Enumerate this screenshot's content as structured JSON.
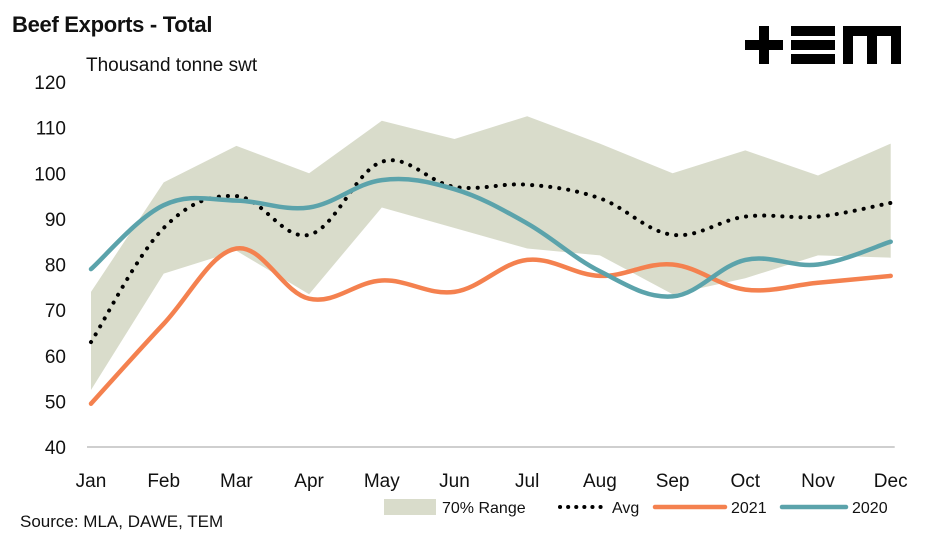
{
  "header": {
    "title": "Beef Exports - Total",
    "logo_text": "TEM"
  },
  "footer": {
    "source": "Source: MLA, DAWE, TEM"
  },
  "colors": {
    "range": "#d9dccb",
    "avg": "#000000",
    "s2021": "#f4814f",
    "s2020": "#5ba3ab",
    "axis": "#bfbfbf"
  },
  "chart_data": {
    "type": "line",
    "title": "Beef Exports - Total",
    "ylabel": "Thousand tonne swt",
    "xlabel": "",
    "ylim": [
      40,
      120
    ],
    "yticks": [
      40,
      50,
      60,
      70,
      80,
      90,
      100,
      110,
      120
    ],
    "categories": [
      "Jan",
      "Feb",
      "Mar",
      "Apr",
      "May",
      "Jun",
      "Jul",
      "Aug",
      "Sep",
      "Oct",
      "Nov",
      "Dec"
    ],
    "grid": false,
    "legend_position": "bottom",
    "range": {
      "name": "70% Range",
      "upper": [
        74,
        98,
        106,
        100,
        111.5,
        107.5,
        112.5,
        106.5,
        100,
        105,
        99.5,
        106.5
      ],
      "lower": [
        52.5,
        78,
        83,
        73.5,
        92.5,
        88,
        83.5,
        82,
        73.5,
        77,
        82,
        81.5
      ]
    },
    "series": [
      {
        "name": "Avg",
        "style": "dotted",
        "values": [
          63,
          88,
          95,
          86.5,
          102.5,
          97,
          97.5,
          94.5,
          86.5,
          90.5,
          90.5,
          93.5
        ]
      },
      {
        "name": "2021",
        "style": "solid",
        "values": [
          49.5,
          67,
          83.5,
          72.5,
          76.5,
          74,
          81,
          77.5,
          80,
          74.5,
          76,
          77.5
        ]
      },
      {
        "name": "2020",
        "style": "solid",
        "values": [
          79,
          93,
          94,
          92.5,
          98.5,
          96.5,
          89,
          78.5,
          73,
          81,
          80,
          85
        ]
      }
    ]
  }
}
